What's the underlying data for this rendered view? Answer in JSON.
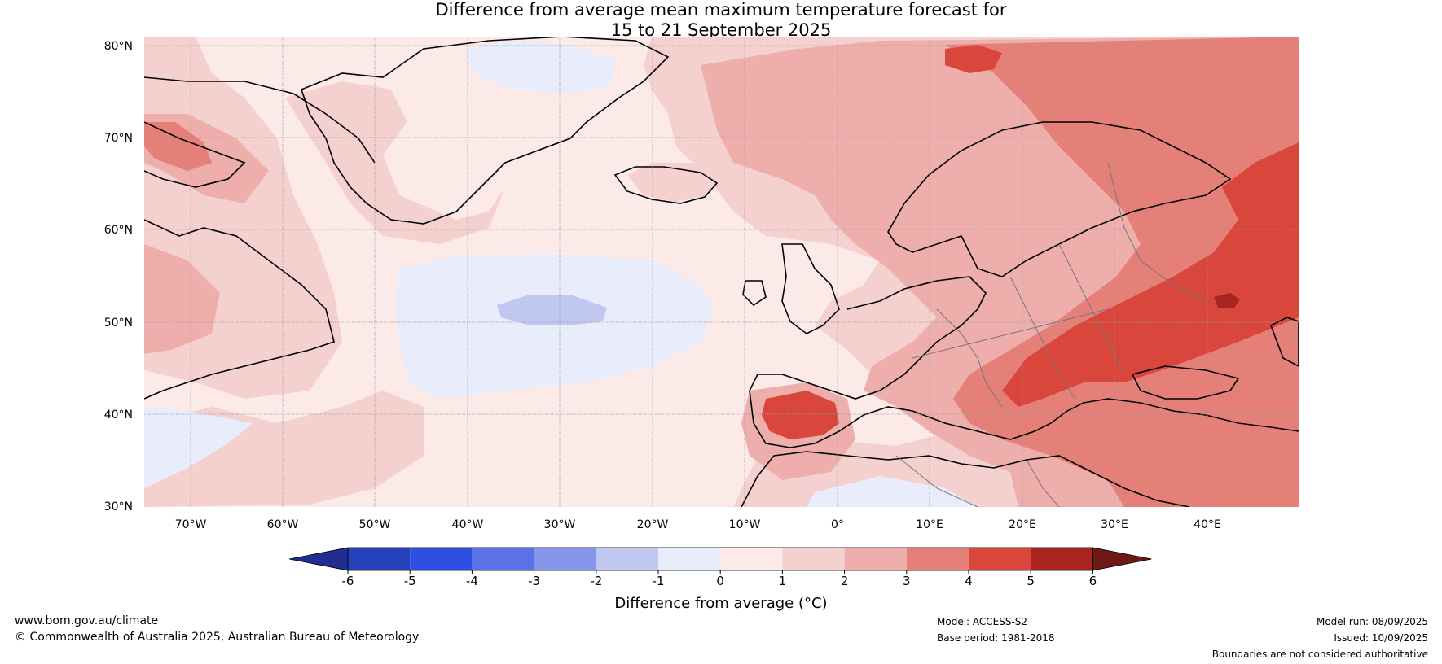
{
  "title": {
    "line1": "Difference from average mean maximum temperature forecast for",
    "line2": "15 to 21 September 2025"
  },
  "map": {
    "lat_labels": [
      "80°N",
      "70°N",
      "60°N",
      "50°N",
      "40°N",
      "30°N"
    ],
    "lon_labels": [
      "70°W",
      "60°W",
      "50°W",
      "40°W",
      "30°W",
      "20°W",
      "10°W",
      "0°",
      "10°E",
      "20°E",
      "30°E",
      "40°E"
    ]
  },
  "colorbar": {
    "ticks": [
      "-6",
      "-5",
      "-4",
      "-3",
      "-2",
      "-1",
      "0",
      "1",
      "2",
      "3",
      "4",
      "5",
      "6"
    ],
    "colors": [
      "#1f2e8f",
      "#2540b8",
      "#2e4fe0",
      "#5b72e6",
      "#8696ea",
      "#c0c8f2",
      "#e8ecfb",
      "#fbeae8",
      "#f4d1cf",
      "#eeaeab",
      "#e58079",
      "#d9463c",
      "#a8241f",
      "#6e1815"
    ],
    "label": "Difference from average (°C)"
  },
  "footer": {
    "website": "www.bom.gov.au/climate",
    "copyright": "© Commonwealth of Australia 2025, Australian Bureau of Meteorology",
    "model": "Model: ACCESS-S2",
    "base_period": "Base period: 1981-2018",
    "model_run": "Model run: 08/09/2025",
    "issued": "Issued: 10/09/2025",
    "disclaimer": "Boundaries are not considered authoritative"
  }
}
